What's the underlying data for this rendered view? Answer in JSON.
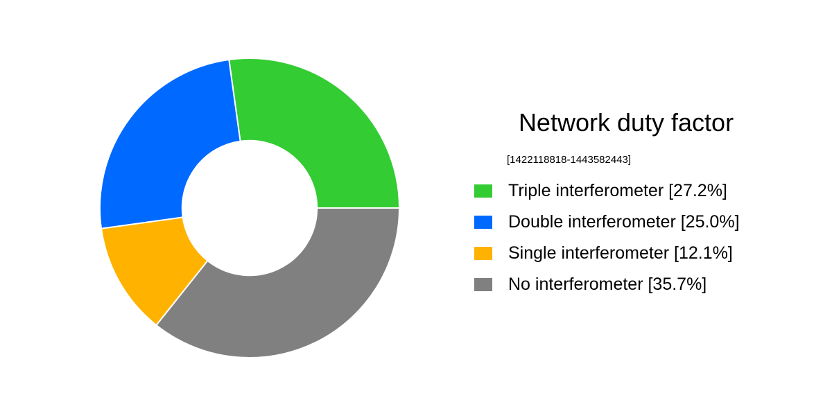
{
  "page": {
    "background_color": "#ffffff"
  },
  "chart_data": {
    "type": "pie",
    "subtype": "donut",
    "title": "Network duty factor",
    "subtitle": "[1422118818-1443582443]",
    "series": [
      {
        "label": "Triple interferometer",
        "value_pct": 27.2,
        "color": "#33cc33"
      },
      {
        "label": "Double interferometer",
        "value_pct": 25.0,
        "color": "#0069ff"
      },
      {
        "label": "Single interferometer",
        "value_pct": 12.1,
        "color": "#ffb200"
      },
      {
        "label": "No interferometer",
        "value_pct": 35.7,
        "color": "#808080"
      }
    ],
    "legend": {
      "position": "right",
      "entries": [
        "Triple interferometer [27.2%]",
        "Double interferometer [25.0%]",
        "Single interferometer [12.1%]",
        "No interferometer [35.7%]"
      ]
    },
    "start_angle_deg": 0,
    "direction": "counterclockwise",
    "hole_radius_ratio": 0.45,
    "edge_color": "#ffffff"
  }
}
